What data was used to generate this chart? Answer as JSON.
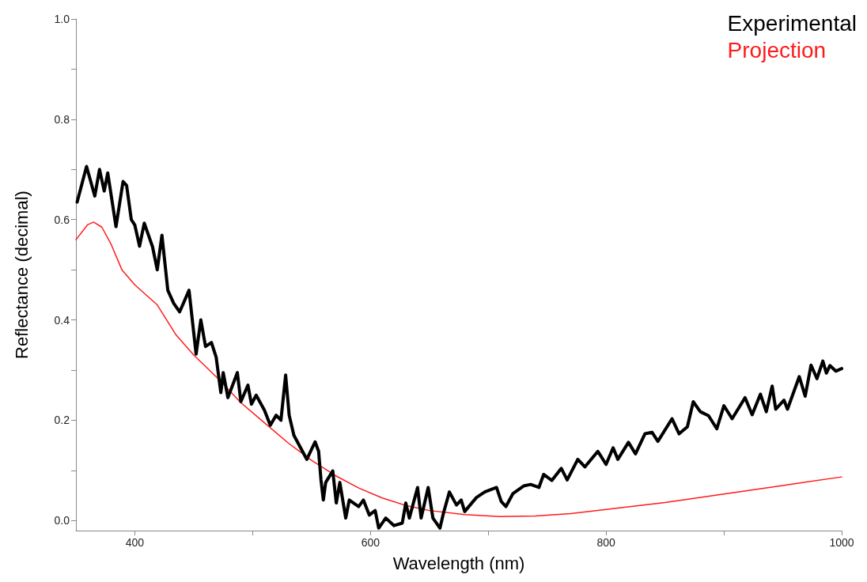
{
  "chart_data": {
    "type": "line",
    "xlabel": "Wavelength (nm)",
    "ylabel": "Reflectance (decimal)",
    "xlim": [
      350,
      1000
    ],
    "ylim": [
      -0.02,
      1.0
    ],
    "xticks": [
      400,
      {
        "value": 500,
        "label": null
      },
      600,
      {
        "value": 700,
        "label": null
      },
      800,
      {
        "value": 900,
        "label": null
      },
      1000
    ],
    "yticks": [
      {
        "value": 0,
        "label": "0.0"
      },
      {
        "value": 0.1,
        "label": null
      },
      0.2,
      {
        "value": 0.3,
        "label": null
      },
      0.4,
      {
        "value": 0.5,
        "label": null
      },
      0.6,
      {
        "value": 0.7,
        "label": null
      },
      0.8,
      {
        "value": 0.9,
        "label": null
      },
      {
        "value": 1,
        "label": "1.0"
      }
    ],
    "grid": false,
    "legend": "top right",
    "marker": "none",
    "line_style": "solid",
    "series": [
      {
        "name": "Experimental",
        "color": "#000000",
        "x": [
          351,
          359,
          366,
          370,
          374,
          377,
          384,
          390,
          393,
          397,
          400,
          404,
          408,
          415,
          419,
          423,
          428,
          433,
          438,
          446,
          452,
          456,
          460,
          465,
          469,
          473,
          475,
          479,
          487,
          490,
          496,
          499,
          503,
          510,
          515,
          520,
          524,
          528,
          531,
          535,
          546,
          553,
          556,
          558,
          560,
          562,
          568,
          571,
          574,
          579,
          582,
          590,
          594,
          599,
          604,
          607,
          613,
          620,
          627,
          630,
          633,
          640,
          643,
          649,
          653,
          659,
          662,
          667,
          673,
          677,
          680,
          686,
          690,
          697,
          707,
          711,
          715,
          721,
          730,
          736,
          743,
          747,
          754,
          762,
          767,
          776,
          782,
          793,
          800,
          806,
          810,
          819,
          825,
          833,
          839,
          844,
          856,
          862,
          869,
          874,
          880,
          887,
          894,
          900,
          907,
          918,
          924,
          931,
          936,
          941,
          944,
          951,
          954,
          964,
          969,
          974,
          979,
          984,
          987,
          990,
          995,
          1000
        ],
        "values": [
          0.635,
          0.706,
          0.647,
          0.7,
          0.657,
          0.693,
          0.586,
          0.676,
          0.668,
          0.6,
          0.589,
          0.547,
          0.593,
          0.546,
          0.5,
          0.569,
          0.459,
          0.433,
          0.416,
          0.459,
          0.332,
          0.4,
          0.347,
          0.355,
          0.326,
          0.255,
          0.295,
          0.245,
          0.295,
          0.237,
          0.27,
          0.232,
          0.25,
          0.22,
          0.19,
          0.21,
          0.2,
          0.29,
          0.21,
          0.17,
          0.122,
          0.157,
          0.138,
          0.081,
          0.041,
          0.076,
          0.099,
          0.035,
          0.076,
          0.005,
          0.041,
          0.028,
          0.041,
          0.011,
          0.02,
          -0.015,
          0.005,
          -0.01,
          -0.005,
          0.035,
          0.005,
          0.066,
          0.005,
          0.066,
          0.005,
          -0.015,
          0.015,
          0.057,
          0.031,
          0.041,
          0.018,
          0.035,
          0.046,
          0.057,
          0.066,
          0.038,
          0.028,
          0.054,
          0.069,
          0.072,
          0.066,
          0.092,
          0.08,
          0.104,
          0.081,
          0.122,
          0.107,
          0.138,
          0.112,
          0.145,
          0.122,
          0.156,
          0.133,
          0.173,
          0.176,
          0.158,
          0.203,
          0.173,
          0.187,
          0.237,
          0.217,
          0.209,
          0.183,
          0.229,
          0.203,
          0.245,
          0.211,
          0.252,
          0.217,
          0.268,
          0.222,
          0.24,
          0.222,
          0.287,
          0.248,
          0.31,
          0.283,
          0.318,
          0.294,
          0.309,
          0.298,
          0.303
        ]
      },
      {
        "name": "Projection",
        "color": "#ff1a1a",
        "x": [
          350,
          360,
          365,
          372,
          380,
          389,
          400,
          419,
          435,
          450,
          472,
          490,
          510,
          530,
          550,
          570,
          590,
          610,
          630,
          650,
          680,
          710,
          740,
          770,
          800,
          850,
          900,
          950,
          1000
        ],
        "values": [
          0.56,
          0.59,
          0.595,
          0.585,
          0.55,
          0.5,
          0.47,
          0.43,
          0.37,
          0.33,
          0.28,
          0.235,
          0.195,
          0.155,
          0.12,
          0.09,
          0.065,
          0.045,
          0.03,
          0.02,
          0.012,
          0.008,
          0.009,
          0.014,
          0.022,
          0.036,
          0.053,
          0.07,
          0.087
        ]
      }
    ]
  }
}
